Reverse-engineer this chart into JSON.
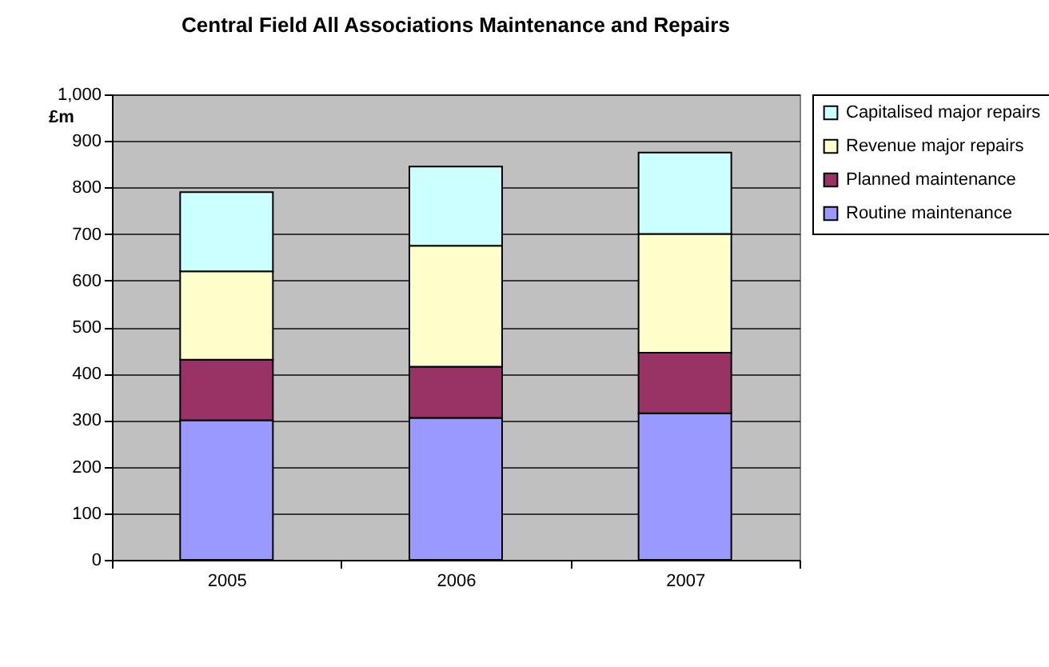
{
  "chart_data": {
    "type": "bar",
    "title": "Central Field All Associations Maintenance and Repairs",
    "ylabel": "£m",
    "categories": [
      "2005",
      "2006",
      "2007"
    ],
    "stacked": true,
    "series": [
      {
        "name": "Routine maintenance",
        "color": "#9999ff",
        "values": [
          300,
          305,
          315
        ]
      },
      {
        "name": "Planned maintenance",
        "color": "#993366",
        "values": [
          130,
          110,
          130
        ]
      },
      {
        "name": "Revenue major repairs",
        "color": "#ffffcc",
        "values": [
          190,
          260,
          255
        ]
      },
      {
        "name": "Capitalised major repairs",
        "color": "#ccffff",
        "values": [
          170,
          170,
          175
        ]
      }
    ],
    "ylim": [
      0,
      1000
    ],
    "yticks": [
      0,
      100,
      200,
      300,
      400,
      500,
      600,
      700,
      800,
      900,
      {
        "value": 1000,
        "label": "1,000"
      }
    ],
    "grid": "y",
    "legend": "right"
  }
}
